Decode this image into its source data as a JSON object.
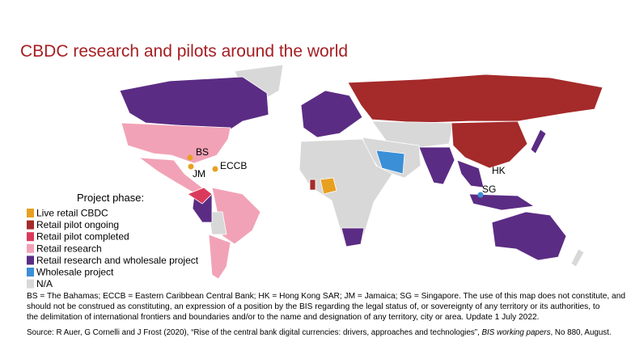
{
  "title": "CBDC research and pilots around the world",
  "legend": {
    "title": "Project phase:",
    "items": [
      {
        "label": "Live retail CBDC",
        "color": "#e8a020"
      },
      {
        "label": "Retail pilot ongoing",
        "color": "#a52a2a"
      },
      {
        "label": "Retail pilot completed",
        "color": "#d93a5c"
      },
      {
        "label": "Retail research",
        "color": "#f2a2b6"
      },
      {
        "label": "Retail research and wholesale project",
        "color": "#5b2c84"
      },
      {
        "label": "Wholesale project",
        "color": "#3b8fd6"
      },
      {
        "label": "N/A",
        "color": "#d8d8d8"
      }
    ]
  },
  "map_labels": [
    "BS",
    "JM",
    "ECCB",
    "HK",
    "SG"
  ],
  "footnote": [
    "BS = The Bahamas; ECCB = Eastern Caribbean Central Bank; HK = Hong Kong SAR; JM = Jamaica; SG = Singapore. The use of this map does not constitute, and",
    "should not be construed as constituting, an expression of a position by the BIS regarding the legal status of, or sovereignty of any territory or its authorities, to",
    "the delimitation of international frontiers and boundaries and/or to the name and designation of any territory, city or area. Update 1 July 2022."
  ],
  "source": {
    "before": "Source: R Auer, G Cornelli and J Frost (2020), “Rise of the central bank digital currencies: drivers, approaches and  technologies”, ",
    "italic": "BIS working papers",
    "after": ", No 880, August."
  }
}
